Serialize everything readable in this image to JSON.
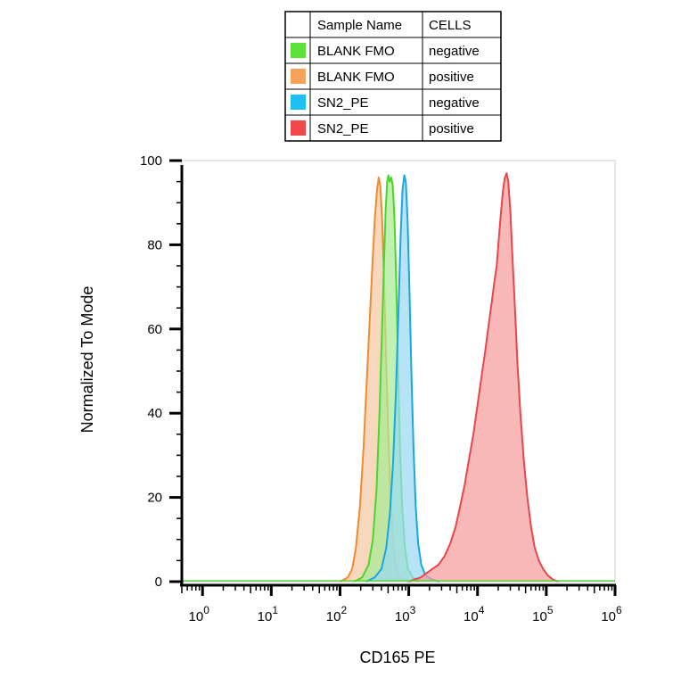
{
  "chart_data": {
    "type": "area",
    "title": "",
    "xlabel": "CD165 PE",
    "ylabel": "Normalized To Mode",
    "xscale": "log",
    "xlim": [
      0.5,
      1000000
    ],
    "ylim": [
      0,
      100
    ],
    "grid": false,
    "legend": {
      "placement": "top-center",
      "headers": [
        "Sample Name",
        "CELLS"
      ],
      "entries": [
        {
          "sample": "BLANK FMO",
          "cells": "negative",
          "color": "#5ce03a"
        },
        {
          "sample": "BLANK FMO",
          "cells": "positive",
          "color": "#f5a25a"
        },
        {
          "sample": "SN2_PE",
          "cells": "negative",
          "color": "#1ec0ef"
        },
        {
          "sample": "SN2_PE",
          "cells": "positive",
          "color": "#f04848"
        }
      ]
    },
    "x_ticks": [
      {
        "value": 1,
        "base": "10",
        "exp": "0"
      },
      {
        "value": 10,
        "base": "10",
        "exp": "1"
      },
      {
        "value": 100,
        "base": "10",
        "exp": "2"
      },
      {
        "value": 1000,
        "base": "10",
        "exp": "3"
      },
      {
        "value": 10000,
        "base": "10",
        "exp": "4"
      },
      {
        "value": 100000,
        "base": "10",
        "exp": "5"
      },
      {
        "value": 1000000,
        "base": "10",
        "exp": "6"
      }
    ],
    "y_ticks": [
      {
        "value": 0,
        "label": "0"
      },
      {
        "value": 20,
        "label": "20"
      },
      {
        "value": 40,
        "label": "40"
      },
      {
        "value": 60,
        "label": "60"
      },
      {
        "value": 80,
        "label": "80"
      },
      {
        "value": 100,
        "label": "100"
      }
    ],
    "series": [
      {
        "sample": "BLANK FMO",
        "cells": "positive",
        "stroke": "#f08a30",
        "fill": "#f5c9a3",
        "points": [
          [
            100,
            0
          ],
          [
            130,
            1
          ],
          [
            150,
            3
          ],
          [
            170,
            8
          ],
          [
            195,
            18
          ],
          [
            220,
            32
          ],
          [
            245,
            48
          ],
          [
            270,
            62
          ],
          [
            295,
            75
          ],
          [
            320,
            86
          ],
          [
            345,
            93
          ],
          [
            365,
            96
          ],
          [
            385,
            94
          ],
          [
            410,
            86
          ],
          [
            440,
            70
          ],
          [
            470,
            52
          ],
          [
            505,
            34
          ],
          [
            545,
            20
          ],
          [
            590,
            10
          ],
          [
            640,
            4
          ],
          [
            700,
            1.5
          ],
          [
            800,
            0.5
          ],
          [
            1000,
            0
          ]
        ]
      },
      {
        "sample": "BLANK FMO",
        "cells": "negative",
        "stroke": "#4cd62a",
        "fill": "#a8ec95",
        "points": [
          [
            160,
            0
          ],
          [
            210,
            1
          ],
          [
            260,
            4
          ],
          [
            300,
            10
          ],
          [
            340,
            22
          ],
          [
            375,
            40
          ],
          [
            405,
            58
          ],
          [
            435,
            75
          ],
          [
            460,
            88
          ],
          [
            485,
            95
          ],
          [
            505,
            96.5
          ],
          [
            525,
            95
          ],
          [
            555,
            96
          ],
          [
            585,
            94
          ],
          [
            620,
            86
          ],
          [
            660,
            70
          ],
          [
            700,
            50
          ],
          [
            745,
            32
          ],
          [
            800,
            18
          ],
          [
            880,
            8
          ],
          [
            970,
            3
          ],
          [
            1150,
            1
          ],
          [
            1400,
            0
          ]
        ]
      },
      {
        "sample": "SN2_PE",
        "cells": "negative",
        "stroke": "#1aa8dc",
        "fill": "#9ad9f2",
        "points": [
          [
            240,
            0
          ],
          [
            320,
            1
          ],
          [
            400,
            3
          ],
          [
            470,
            8
          ],
          [
            530,
            16
          ],
          [
            590,
            28
          ],
          [
            650,
            45
          ],
          [
            710,
            65
          ],
          [
            760,
            82
          ],
          [
            810,
            93
          ],
          [
            860,
            96.5
          ],
          [
            905,
            95
          ],
          [
            960,
            86
          ],
          [
            1020,
            70
          ],
          [
            1090,
            50
          ],
          [
            1170,
            32
          ],
          [
            1260,
            18
          ],
          [
            1370,
            9
          ],
          [
            1520,
            4
          ],
          [
            1750,
            1.5
          ],
          [
            2200,
            0.5
          ],
          [
            2800,
            0
          ]
        ]
      },
      {
        "sample": "SN2_PE",
        "cells": "positive",
        "stroke": "#e8464a",
        "fill": "#f59d9d",
        "points": [
          [
            1000,
            0
          ],
          [
            1200,
            0.5
          ],
          [
            1500,
            1
          ],
          [
            1800,
            2
          ],
          [
            2200,
            3
          ],
          [
            2700,
            4
          ],
          [
            3300,
            6
          ],
          [
            4000,
            9
          ],
          [
            4800,
            13
          ],
          [
            5600,
            18
          ],
          [
            6500,
            23
          ],
          [
            7500,
            29
          ],
          [
            8700,
            35
          ],
          [
            10000,
            42
          ],
          [
            11500,
            49
          ],
          [
            13000,
            55
          ],
          [
            14500,
            61
          ],
          [
            16000,
            66
          ],
          [
            17500,
            71
          ],
          [
            19000,
            75
          ],
          [
            20500,
            82
          ],
          [
            22000,
            88
          ],
          [
            23500,
            93
          ],
          [
            25000,
            96
          ],
          [
            26500,
            97
          ],
          [
            28000,
            95
          ],
          [
            30000,
            88
          ],
          [
            32000,
            78
          ],
          [
            35000,
            65
          ],
          [
            38000,
            52
          ],
          [
            42000,
            40
          ],
          [
            47000,
            29
          ],
          [
            53000,
            20
          ],
          [
            60000,
            13
          ],
          [
            68000,
            8
          ],
          [
            78000,
            5
          ],
          [
            90000,
            3
          ],
          [
            105000,
            1.5
          ],
          [
            125000,
            0.5
          ],
          [
            150000,
            0
          ]
        ]
      }
    ]
  }
}
